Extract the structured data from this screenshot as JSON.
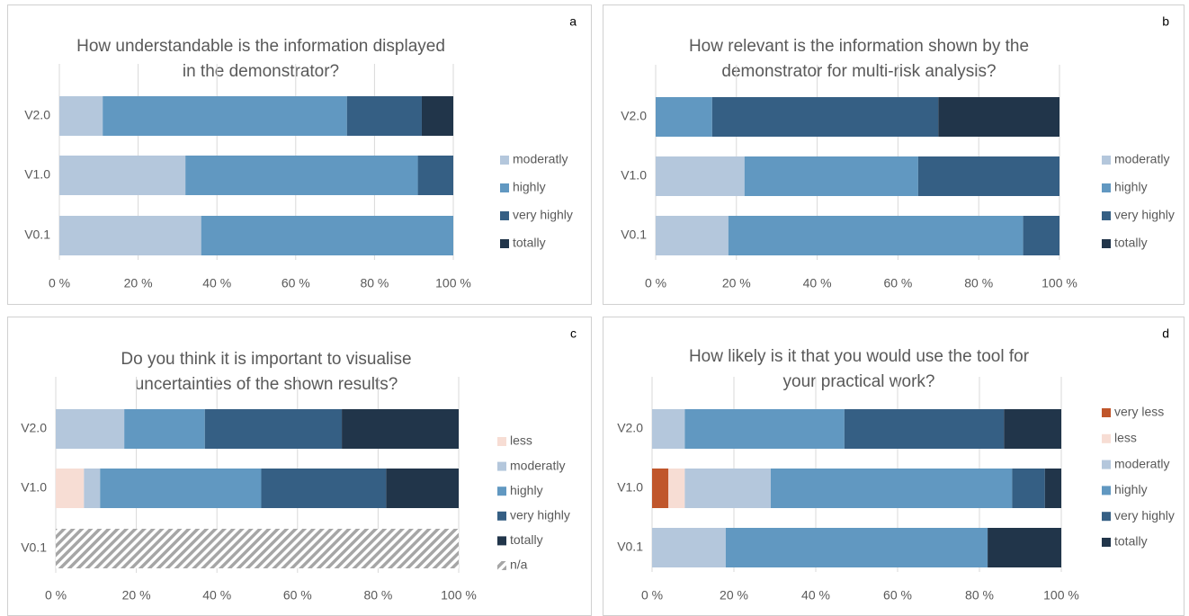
{
  "chart_data": [
    {
      "type": "bar",
      "orientation": "horizontal",
      "stacked": true,
      "panel": "a",
      "title": [
        "How understandable is the information displayed",
        "in the demonstrator?"
      ],
      "categories": [
        "V2.0",
        "V1.0",
        "V0.1"
      ],
      "series": [
        {
          "name": "moderatly",
          "color": "#b4c7dc",
          "values": [
            11,
            32,
            36
          ]
        },
        {
          "name": "highly",
          "color": "#6198c1",
          "values": [
            62,
            59,
            64
          ]
        },
        {
          "name": "very highly",
          "color": "#355f84",
          "values": [
            19,
            9,
            null
          ]
        },
        {
          "name": "totally",
          "color": "#21354a",
          "values": [
            8,
            null,
            null
          ]
        }
      ],
      "xlim": [
        0,
        100
      ],
      "xticks": [
        {
          "value": 0,
          "label": "0 %"
        },
        {
          "value": 20,
          "label": "20 %"
        },
        {
          "value": 40,
          "label": "40 %"
        },
        {
          "value": 60,
          "label": "60 %"
        },
        {
          "value": 80,
          "label": "80 %"
        },
        {
          "value": 100,
          "label": "100 %"
        }
      ],
      "grid": true,
      "legend": "right"
    },
    {
      "type": "bar",
      "orientation": "horizontal",
      "stacked": true,
      "panel": "b",
      "title": [
        "How relevant is the information shown by the",
        "demonstrator for multi-risk analysis?"
      ],
      "categories": [
        "V2.0",
        "V1.0",
        "V0.1"
      ],
      "series": [
        {
          "name": "moderatly",
          "color": "#b4c7dc",
          "values": [
            null,
            22,
            18
          ]
        },
        {
          "name": "highly",
          "color": "#6198c1",
          "values": [
            14,
            43,
            73
          ]
        },
        {
          "name": "very highly",
          "color": "#355f84",
          "values": [
            56,
            35,
            9
          ]
        },
        {
          "name": "totally",
          "color": "#21354a",
          "values": [
            30,
            null,
            null
          ]
        }
      ],
      "xlim": [
        0,
        100
      ],
      "xticks": [
        {
          "value": 0,
          "label": "0 %"
        },
        {
          "value": 20,
          "label": "20 %"
        },
        {
          "value": 40,
          "label": "40 %"
        },
        {
          "value": 60,
          "label": "60 %"
        },
        {
          "value": 80,
          "label": "80 %"
        },
        {
          "value": 100,
          "label": "100 %"
        }
      ],
      "grid": true,
      "legend": "right"
    },
    {
      "type": "bar",
      "orientation": "horizontal",
      "stacked": true,
      "panel": "c",
      "title": [
        "Do you think it is important to visualise",
        "uncertainties of the shown results?"
      ],
      "categories": [
        "V2.0",
        "V1.0",
        "V0.1"
      ],
      "series": [
        {
          "name": "less",
          "color": "#f7ddd4",
          "values": [
            null,
            7,
            null
          ]
        },
        {
          "name": "moderatly",
          "color": "#b4c7dc",
          "values": [
            17,
            4,
            null
          ]
        },
        {
          "name": "highly",
          "color": "#6198c1",
          "values": [
            20,
            40,
            null
          ]
        },
        {
          "name": "very highly",
          "color": "#355f84",
          "values": [
            34,
            31,
            null
          ]
        },
        {
          "name": "totally",
          "color": "#21354a",
          "values": [
            29,
            18,
            null
          ]
        },
        {
          "name": "n/a",
          "color": "#a6a6a6",
          "pattern": "hatch",
          "values": [
            null,
            null,
            100
          ]
        }
      ],
      "xlim": [
        0,
        100
      ],
      "xticks": [
        {
          "value": 0,
          "label": "0 %"
        },
        {
          "value": 20,
          "label": "20 %"
        },
        {
          "value": 40,
          "label": "40 %"
        },
        {
          "value": 60,
          "label": "60 %"
        },
        {
          "value": 80,
          "label": "80 %"
        },
        {
          "value": 100,
          "label": "100 %"
        }
      ],
      "grid": true,
      "legend": "right"
    },
    {
      "type": "bar",
      "orientation": "horizontal",
      "stacked": true,
      "panel": "d",
      "title": [
        "How likely is it that you would use the tool for",
        "your practical work?"
      ],
      "categories": [
        "V2.0",
        "V1.0",
        "V0.1"
      ],
      "series": [
        {
          "name": "very less",
          "color": "#c0562b",
          "values": [
            null,
            4,
            null
          ]
        },
        {
          "name": "less",
          "color": "#f7ddd4",
          "values": [
            null,
            4,
            null
          ]
        },
        {
          "name": "moderatly",
          "color": "#b4c7dc",
          "values": [
            8,
            21,
            18
          ]
        },
        {
          "name": "highly",
          "color": "#6198c1",
          "values": [
            39,
            59,
            64
          ]
        },
        {
          "name": "very highly",
          "color": "#355f84",
          "values": [
            39,
            8,
            null
          ]
        },
        {
          "name": "totally",
          "color": "#21354a",
          "values": [
            14,
            4,
            18
          ]
        }
      ],
      "xlim": [
        0,
        100
      ],
      "xticks": [
        {
          "value": 0,
          "label": "0 %"
        },
        {
          "value": 20,
          "label": "20 %"
        },
        {
          "value": 40,
          "label": "40 %"
        },
        {
          "value": 60,
          "label": "60 %"
        },
        {
          "value": 80,
          "label": "80 %"
        },
        {
          "value": 100,
          "label": "100 %"
        }
      ],
      "grid": true,
      "legend": "right"
    }
  ]
}
